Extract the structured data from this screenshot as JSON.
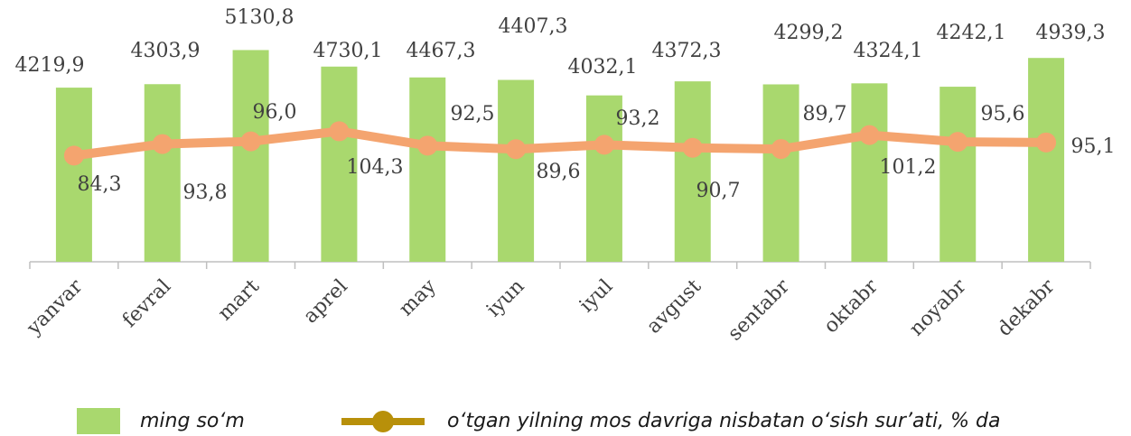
{
  "chart_data": {
    "type": "bar_line",
    "categories": [
      "yanvar",
      "fevral",
      "mart",
      "aprel",
      "may",
      "iyun",
      "iyul",
      "avgust",
      "sentabr",
      "oktabr",
      "noyabr",
      "dekabr"
    ],
    "series": [
      {
        "name": "ming so‘m",
        "type": "bar",
        "color": "#a9d86e",
        "values": [
          4219.9,
          4303.9,
          5130.8,
          4730.1,
          4467.3,
          4407.3,
          4032.1,
          4372.3,
          4299.2,
          4324.1,
          4242.1,
          4939.3
        ],
        "value_labels": [
          "4219,9",
          "4303,9",
          "5130,8",
          "4730,1",
          "4467,3",
          "4407,3",
          "4032,1",
          "4372,3",
          "4299,2",
          "4324,1",
          "4242,1",
          "4939,3"
        ]
      },
      {
        "name": "o‘tgan yilning mos davriga nisbatan o‘sish sur’ati, % da",
        "type": "line",
        "axis": "y2",
        "color": "#f4a46f",
        "legend_color": "#b8900a",
        "values": [
          84.3,
          93.8,
          96.0,
          104.3,
          92.5,
          89.6,
          93.2,
          90.7,
          89.7,
          101.2,
          95.6,
          95.1
        ],
        "value_labels": [
          "84,3",
          "93,8",
          "96,0",
          "104,3",
          "92,5",
          "89,6",
          "93,2",
          "90,7",
          "89,7",
          "101,2",
          "95,6",
          "95,1"
        ]
      }
    ],
    "ylim": [
      0,
      5600
    ],
    "y2lim": [
      -3,
      187
    ],
    "grid": false,
    "legend": "bottom"
  }
}
